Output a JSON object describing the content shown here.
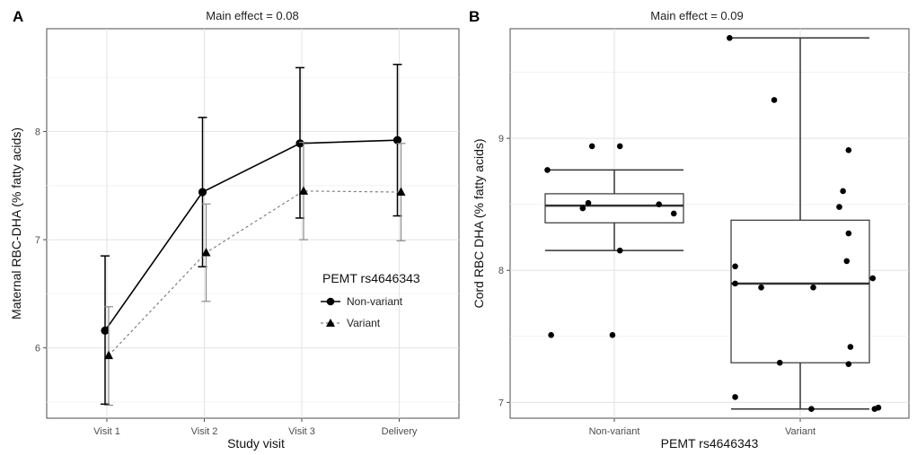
{
  "chart_data": [
    {
      "panel": "A",
      "type": "line",
      "title": "Main effect = 0.08",
      "xlabel": "Study visit",
      "ylabel": "Maternal RBC-DHA (% fatty acids)",
      "categories": [
        "Visit 1",
        "Visit 2",
        "Visit 3",
        "Delivery"
      ],
      "ylim": [
        5.35,
        8.95
      ],
      "yticks": [
        6,
        7,
        8
      ],
      "grid": true,
      "legend": {
        "title": "PEMT rs4646343",
        "position": "right-inside"
      },
      "series": [
        {
          "name": "Non-variant",
          "marker": "circle",
          "line": "solid",
          "values": [
            6.16,
            7.44,
            7.89,
            7.92
          ],
          "err_low": [
            5.48,
            6.75,
            7.2,
            7.22
          ],
          "err_high": [
            6.85,
            8.13,
            8.59,
            8.62
          ]
        },
        {
          "name": "Variant",
          "marker": "triangle",
          "line": "dashed",
          "color": "#7f7f7f",
          "values": [
            5.93,
            6.88,
            7.45,
            7.44
          ],
          "err_low": [
            5.47,
            6.43,
            7.0,
            6.99
          ],
          "err_high": [
            6.38,
            7.33,
            7.9,
            7.89
          ]
        }
      ]
    },
    {
      "panel": "B",
      "type": "box",
      "title": "Main effect = 0.09",
      "xlabel": "PEMT rs4646343",
      "ylabel": "Cord RBC DHA (% fatty acids)",
      "categories": [
        "Non-variant",
        "Variant"
      ],
      "ylim": [
        6.88,
        9.83
      ],
      "yticks": [
        7,
        8,
        9
      ],
      "grid": true,
      "boxes": [
        {
          "name": "Non-variant",
          "q1": 8.36,
          "median": 8.49,
          "q3": 8.58,
          "whisker_low": 8.15,
          "whisker_high": 8.76
        },
        {
          "name": "Variant",
          "q1": 7.3,
          "median": 7.9,
          "q3": 8.38,
          "whisker_low": 6.95,
          "whisker_high": 9.76
        }
      ],
      "points": [
        {
          "group": "Non-variant",
          "jitter": -0.36,
          "y": 8.76
        },
        {
          "group": "Non-variant",
          "jitter": -0.12,
          "y": 8.94
        },
        {
          "group": "Non-variant",
          "jitter": 0.03,
          "y": 8.94
        },
        {
          "group": "Non-variant",
          "jitter": -0.14,
          "y": 8.51
        },
        {
          "group": "Non-variant",
          "jitter": -0.17,
          "y": 8.47
        },
        {
          "group": "Non-variant",
          "jitter": 0.24,
          "y": 8.5
        },
        {
          "group": "Non-variant",
          "jitter": 0.32,
          "y": 8.43
        },
        {
          "group": "Non-variant",
          "jitter": 0.03,
          "y": 8.15
        },
        {
          "group": "Non-variant",
          "jitter": -0.34,
          "y": 7.51
        },
        {
          "group": "Non-variant",
          "jitter": -0.01,
          "y": 7.51
        },
        {
          "group": "Variant",
          "jitter": -0.38,
          "y": 9.76
        },
        {
          "group": "Variant",
          "jitter": -0.14,
          "y": 9.29
        },
        {
          "group": "Variant",
          "jitter": 0.26,
          "y": 8.91
        },
        {
          "group": "Variant",
          "jitter": 0.23,
          "y": 8.6
        },
        {
          "group": "Variant",
          "jitter": 0.21,
          "y": 8.48
        },
        {
          "group": "Variant",
          "jitter": 0.26,
          "y": 8.28
        },
        {
          "group": "Variant",
          "jitter": 0.25,
          "y": 8.07
        },
        {
          "group": "Variant",
          "jitter": -0.35,
          "y": 8.03
        },
        {
          "group": "Variant",
          "jitter": -0.35,
          "y": 7.9
        },
        {
          "group": "Variant",
          "jitter": -0.21,
          "y": 7.87
        },
        {
          "group": "Variant",
          "jitter": 0.07,
          "y": 7.87
        },
        {
          "group": "Variant",
          "jitter": 0.39,
          "y": 7.94
        },
        {
          "group": "Variant",
          "jitter": 0.27,
          "y": 7.42
        },
        {
          "group": "Variant",
          "jitter": -0.11,
          "y": 7.3
        },
        {
          "group": "Variant",
          "jitter": 0.26,
          "y": 7.29
        },
        {
          "group": "Variant",
          "jitter": -0.35,
          "y": 7.04
        },
        {
          "group": "Variant",
          "jitter": 0.06,
          "y": 6.95
        },
        {
          "group": "Variant",
          "jitter": 0.4,
          "y": 6.95
        },
        {
          "group": "Variant",
          "jitter": 0.42,
          "y": 6.96
        }
      ]
    }
  ],
  "labels": {
    "panel_a": "A",
    "panel_b": "B"
  }
}
